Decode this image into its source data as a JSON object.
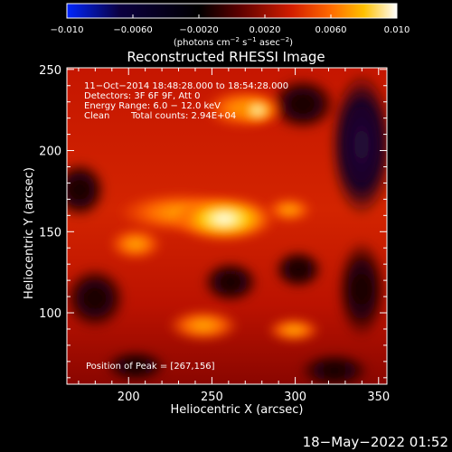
{
  "title": "Reconstructed RHESSI Image",
  "colorbar": {
    "ticks": [
      "−0.010",
      "−0.0060",
      "−0.0020",
      "0.0020",
      "0.0060",
      "0.010"
    ],
    "unit_label": {
      "prefix": "(photons cm",
      "sup1": "−2",
      "mid1": " s",
      "sup2": "−1",
      "mid2": " asec",
      "sup3": "−2",
      "suffix": ")"
    },
    "colors": [
      "#0026ff",
      "#0b0040",
      "#000000",
      "#5a0000",
      "#d21d00",
      "#ff6a00",
      "#ffc000",
      "#ffffff"
    ]
  },
  "overlay": {
    "line1": "11−Oct−2014 18:48:28.000 to 18:54:28.000",
    "line2": "Detectors: 3F 6F 9F, Att 0",
    "line3": "Energy Range: 6.0 − 12.0 keV",
    "line4_a": "Clean",
    "line4_b": "Total counts: 2.94E+04",
    "peak": "Position of Peak = [267,156]"
  },
  "x_axis": {
    "label": "Heliocentric X (arcsec)",
    "range": [
      163,
      355
    ],
    "ticks": [
      {
        "value": 200,
        "label": "200"
      },
      {
        "value": 250,
        "label": "250"
      },
      {
        "value": 300,
        "label": "300"
      },
      {
        "value": 350,
        "label": "350"
      }
    ]
  },
  "y_axis": {
    "label": "Heliocentric Y (arcsec)",
    "range": [
      56,
      251
    ],
    "ticks": [
      {
        "value": 100,
        "label": "100"
      },
      {
        "value": 150,
        "label": "150"
      },
      {
        "value": 200,
        "label": "200"
      },
      {
        "value": 250,
        "label": "250"
      }
    ]
  },
  "timestamp": "18−May−2022 01:52",
  "image": {
    "peak_position": [
      267,
      156
    ],
    "colormap": "red-temperature"
  }
}
